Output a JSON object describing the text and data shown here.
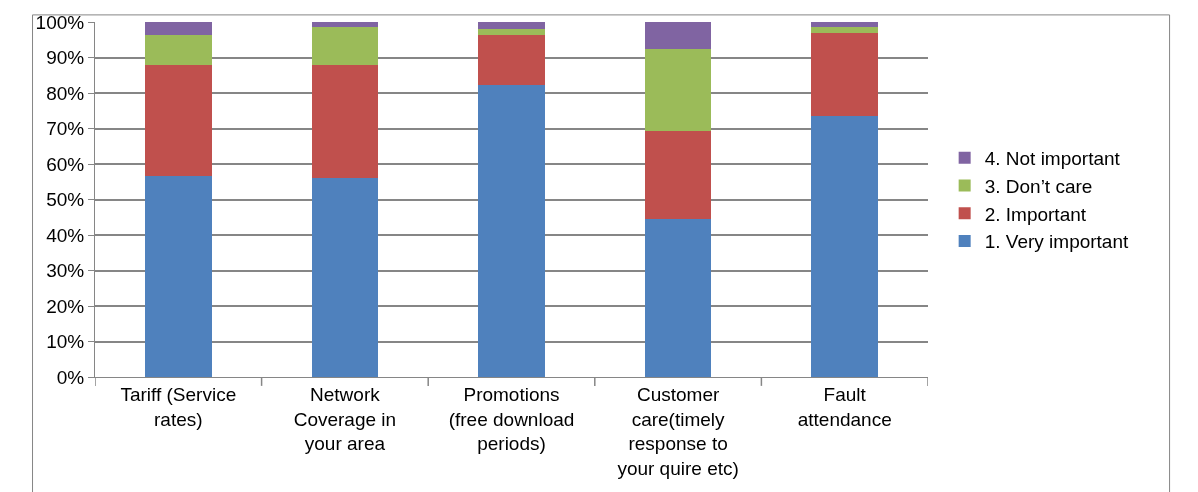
{
  "chart_data": {
    "type": "bar",
    "stacked": true,
    "categories": [
      "Tariff (Service rates)",
      "Network Coverage in your area",
      "Promotions (free download periods)",
      "Customer care(timely response to your quire etc)",
      "Fault attendance"
    ],
    "series": [
      {
        "name": "1. Very important",
        "color": "#4f81bd",
        "values": [
          56.7,
          56,
          82.3,
          44.4,
          73.4
        ]
      },
      {
        "name": "2. Important",
        "color": "#c0504d",
        "values": [
          31.3,
          31.8,
          14.1,
          24.8,
          23.6
        ]
      },
      {
        "name": "3. Don’t care",
        "color": "#9bbb59",
        "values": [
          8.3,
          10.7,
          1.5,
          23.2,
          1.5
        ]
      },
      {
        "name": "4. Not important",
        "color": "#8064a2",
        "values": [
          3.7,
          1.5,
          2.1,
          7.6,
          1.5
        ]
      }
    ],
    "ylim": [
      0,
      100
    ],
    "yticks": [
      {
        "value": 0,
        "label": "0%"
      },
      {
        "value": 10,
        "label": "10%"
      },
      {
        "value": 20,
        "label": "20%"
      },
      {
        "value": 30,
        "label": "30%"
      },
      {
        "value": 40,
        "label": "40%"
      },
      {
        "value": 50,
        "label": "50%"
      },
      {
        "value": 60,
        "label": "60%"
      },
      {
        "value": 70,
        "label": "70%"
      },
      {
        "value": 80,
        "label": "80%"
      },
      {
        "value": 90,
        "label": "90%"
      },
      {
        "value": 100,
        "label": "100%"
      }
    ],
    "grid": "y",
    "legend": "right"
  }
}
